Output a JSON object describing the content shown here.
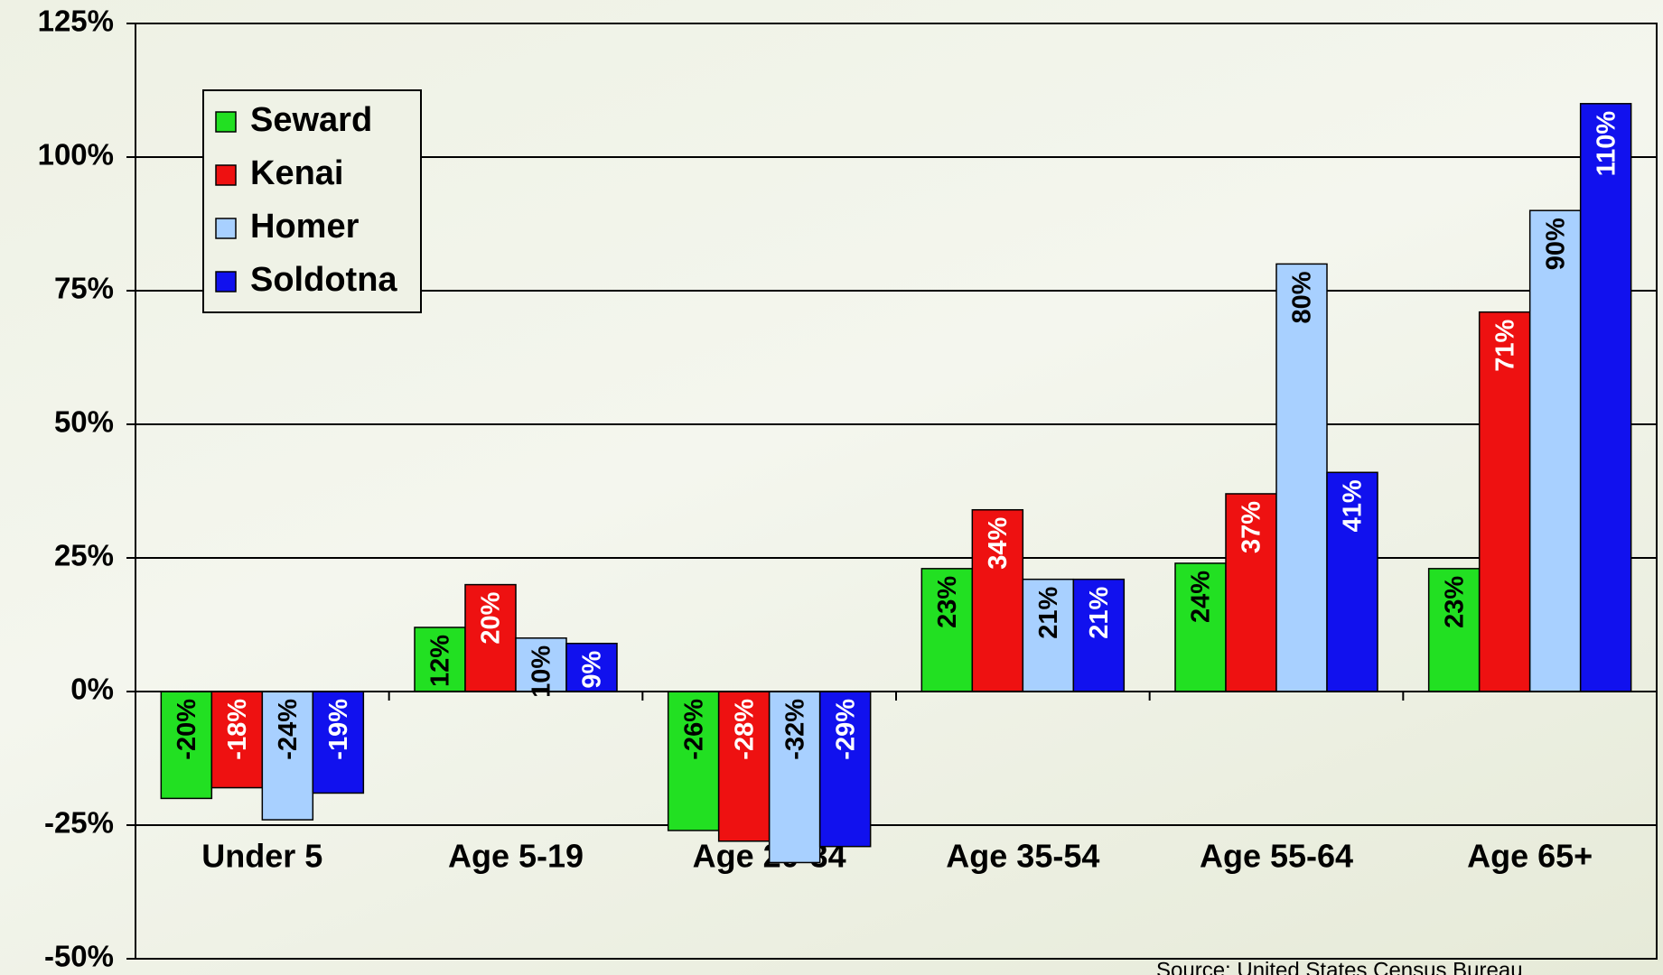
{
  "chart_data": {
    "type": "bar",
    "categories": [
      "Under 5",
      "Age 5-19",
      "Age 20-34",
      "Age 35-54",
      "Age 55-64",
      "Age 65+"
    ],
    "series": [
      {
        "name": "Seward",
        "color": "#22e022",
        "values": [
          -20,
          12,
          -26,
          23,
          24,
          23
        ],
        "value_labels": [
          "-20%",
          "12%",
          "-26%",
          "23%",
          "24%",
          "23%"
        ]
      },
      {
        "name": "Kenai",
        "color": "#ee1111",
        "values": [
          -18,
          20,
          -28,
          34,
          37,
          71
        ],
        "value_labels": [
          "-18%",
          "20%",
          "-28%",
          "34%",
          "37%",
          "71%"
        ]
      },
      {
        "name": "Homer",
        "color": "#a8d0ff",
        "values": [
          -24,
          10,
          -32,
          21,
          80,
          90
        ],
        "value_labels": [
          "-24%",
          "10%",
          "-32%",
          "21%",
          "80%",
          "90%"
        ]
      },
      {
        "name": "Soldotna",
        "color": "#1111ee",
        "values": [
          -19,
          9,
          -29,
          21,
          41,
          110
        ],
        "value_labels": [
          "-19%",
          "9%",
          "-29%",
          "21%",
          "41%",
          "110%"
        ]
      }
    ],
    "ylim": [
      -50,
      125
    ],
    "yticks": [
      {
        "value": -50,
        "label": "-50%"
      },
      {
        "value": -25,
        "label": "-25%"
      },
      {
        "value": 0,
        "label": "0%"
      },
      {
        "value": 25,
        "label": "25%"
      },
      {
        "value": 50,
        "label": "50%"
      },
      {
        "value": 75,
        "label": "75%"
      },
      {
        "value": 100,
        "label": "100%"
      },
      {
        "value": 125,
        "label": "125%"
      }
    ],
    "grid": true,
    "legend": "upper left",
    "source": "Source:  United States Census Bureau"
  }
}
